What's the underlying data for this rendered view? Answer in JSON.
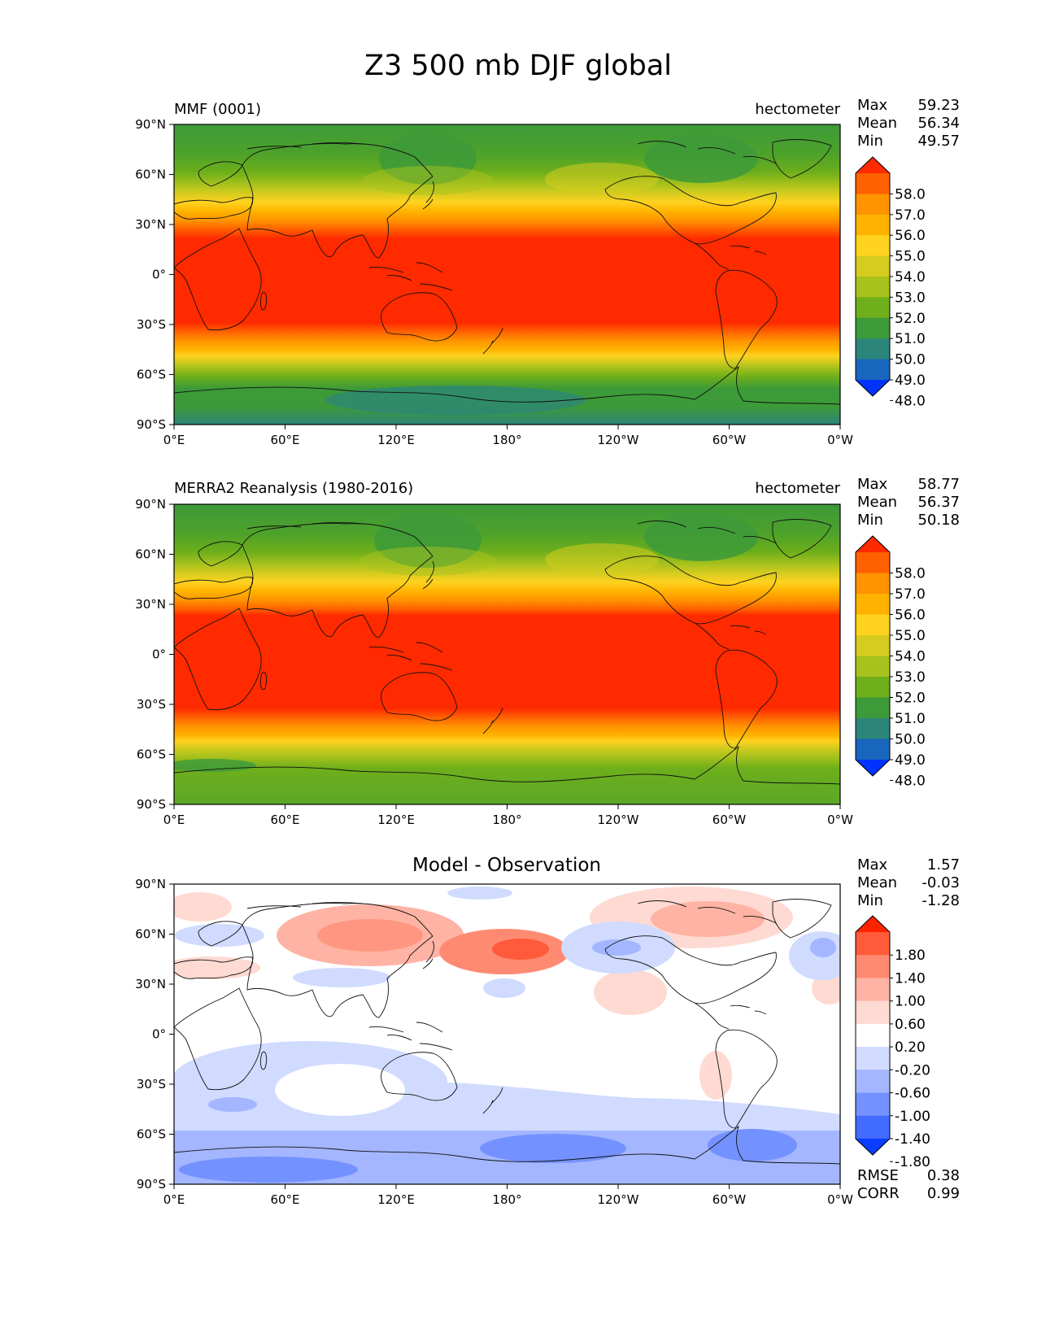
{
  "title": "Z3 500 mb DJF global",
  "lat_ticks": [
    "90°N",
    "60°N",
    "30°N",
    "0°",
    "30°S",
    "60°S",
    "90°S"
  ],
  "lon_ticks": [
    "0°E",
    "60°E",
    "120°E",
    "180°",
    "120°W",
    "60°W",
    "0°W"
  ],
  "stat_labels": {
    "max": "Max",
    "mean": "Mean",
    "min": "Min",
    "rmse": "RMSE",
    "corr": "CORR"
  },
  "panels": [
    {
      "id": "model",
      "left_title": "MMF (0001)",
      "center_title": "",
      "units": "hectometer",
      "stats": {
        "max": "59.23",
        "mean": "56.34",
        "min": "49.57"
      },
      "colorbar": {
        "labels": [
          "58.0",
          "57.0",
          "56.0",
          "55.0",
          "54.0",
          "53.0",
          "52.0",
          "51.0",
          "50.0",
          "49.0",
          "48.0"
        ],
        "colors": [
          "#ff2a00",
          "#ff6000",
          "#ff9300",
          "#ffb300",
          "#ffd21f",
          "#d6cc1f",
          "#a8c21d",
          "#6eaf1b",
          "#3d9a39",
          "#2c857a",
          "#1866bd",
          "#0033ff"
        ]
      }
    },
    {
      "id": "obs",
      "left_title": "MERRA2 Reanalysis (1980-2016)",
      "center_title": "",
      "units": "hectometer",
      "stats": {
        "max": "58.77",
        "mean": "56.37",
        "min": "50.18"
      },
      "colorbar": {
        "labels": [
          "58.0",
          "57.0",
          "56.0",
          "55.0",
          "54.0",
          "53.0",
          "52.0",
          "51.0",
          "50.0",
          "49.0",
          "48.0"
        ],
        "colors": [
          "#ff2a00",
          "#ff6000",
          "#ff9300",
          "#ffb300",
          "#ffd21f",
          "#d6cc1f",
          "#a8c21d",
          "#6eaf1b",
          "#3d9a39",
          "#2c857a",
          "#1866bd",
          "#0033ff"
        ]
      }
    },
    {
      "id": "diff",
      "left_title": "",
      "center_title": "Model - Observation",
      "units": "",
      "stats": {
        "max": "1.57",
        "mean": "-0.03",
        "min": "-1.28",
        "rmse": "0.38",
        "corr": "0.99"
      },
      "colorbar": {
        "labels": [
          "1.80",
          "1.40",
          "1.00",
          "0.60",
          "0.20",
          "-0.20",
          "-0.60",
          "-1.00",
          "-1.40",
          "-1.80"
        ],
        "colors": [
          "#ff2200",
          "#ff5a3a",
          "#ff8a72",
          "#ffb3a4",
          "#ffdad2",
          "#ffffff",
          "#d0dbff",
          "#a3b6ff",
          "#7392ff",
          "#426bff",
          "#0a3dff"
        ]
      }
    }
  ]
}
